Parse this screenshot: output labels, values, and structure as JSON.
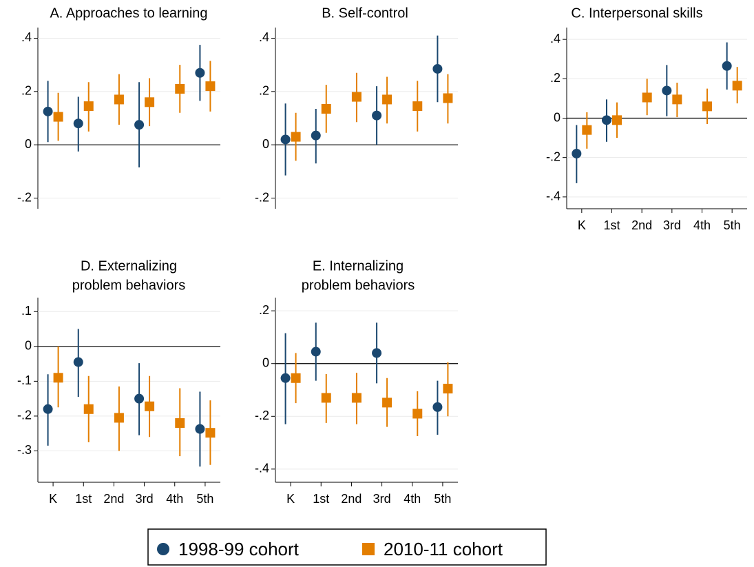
{
  "chart_data": [
    {
      "type": "errorbar",
      "title": [
        "A. Approaches to learning"
      ],
      "categories": [
        null,
        null,
        null,
        null,
        null,
        null
      ],
      "series": [
        {
          "name": "1998-99 cohort",
          "color": "#1a476f",
          "marker": "circle",
          "values": [
            0.125,
            0.08,
            null,
            0.075,
            null,
            0.27
          ],
          "lower": [
            0.01,
            -0.025,
            null,
            -0.085,
            null,
            0.165
          ],
          "upper": [
            0.24,
            0.18,
            null,
            0.235,
            null,
            0.375
          ]
        },
        {
          "name": "2010-11 cohort",
          "color": "#e37e00",
          "marker": "square",
          "values": [
            0.105,
            0.145,
            0.17,
            0.16,
            0.21,
            0.22
          ],
          "lower": [
            0.015,
            0.05,
            0.075,
            0.07,
            0.12,
            0.125
          ],
          "upper": [
            0.195,
            0.235,
            0.265,
            0.25,
            0.3,
            0.315
          ]
        }
      ],
      "ylim": [
        -0.24,
        0.44
      ],
      "yticks": [
        {
          "value": -0.2,
          "label": "-.2"
        },
        0,
        {
          "value": 0.2,
          "label": ".2"
        },
        {
          "value": 0.4,
          "label": ".4"
        }
      ],
      "grid": true,
      "x_axis": false
    },
    {
      "type": "errorbar",
      "title": [
        "B. Self-control"
      ],
      "categories": [
        null,
        null,
        null,
        null,
        null,
        null
      ],
      "series": [
        {
          "name": "1998-99 cohort",
          "color": "#1a476f",
          "marker": "circle",
          "values": [
            0.02,
            0.035,
            null,
            0.11,
            null,
            0.285
          ],
          "lower": [
            -0.115,
            -0.07,
            null,
            0.0,
            null,
            0.16
          ],
          "upper": [
            0.155,
            0.135,
            null,
            0.22,
            null,
            0.41
          ]
        },
        {
          "name": "2010-11 cohort",
          "color": "#e37e00",
          "marker": "square",
          "values": [
            0.03,
            0.135,
            0.18,
            0.17,
            0.145,
            0.175
          ],
          "lower": [
            -0.06,
            0.045,
            0.085,
            0.08,
            0.05,
            0.08
          ],
          "upper": [
            0.12,
            0.225,
            0.27,
            0.255,
            0.24,
            0.265
          ]
        }
      ],
      "ylim": [
        -0.24,
        0.44
      ],
      "yticks": [
        {
          "value": -0.2,
          "label": "-.2"
        },
        0,
        {
          "value": 0.2,
          "label": ".2"
        },
        {
          "value": 0.4,
          "label": ".4"
        }
      ],
      "grid": true,
      "x_axis": false
    },
    {
      "type": "errorbar",
      "title": [
        "C. Interpersonal skills"
      ],
      "categories": [
        "K",
        "1st",
        "2nd",
        "3rd",
        "4th",
        "5th"
      ],
      "series": [
        {
          "name": "1998-99 cohort",
          "color": "#1a476f",
          "marker": "circle",
          "values": [
            -0.18,
            -0.01,
            null,
            0.14,
            null,
            0.265
          ],
          "lower": [
            -0.33,
            -0.12,
            null,
            0.01,
            null,
            0.145
          ],
          "upper": [
            -0.035,
            0.095,
            null,
            0.27,
            null,
            0.385
          ]
        },
        {
          "name": "2010-11 cohort",
          "color": "#e37e00",
          "marker": "square",
          "values": [
            -0.06,
            -0.01,
            0.105,
            0.095,
            0.06,
            0.165
          ],
          "lower": [
            -0.155,
            -0.1,
            0.015,
            0.005,
            -0.03,
            0.075
          ],
          "upper": [
            0.03,
            0.08,
            0.2,
            0.18,
            0.15,
            0.26
          ]
        }
      ],
      "ylim": [
        -0.46,
        0.46
      ],
      "yticks": [
        {
          "value": -0.4,
          "label": "-.4"
        },
        {
          "value": -0.2,
          "label": "-.2"
        },
        0,
        {
          "value": 0.2,
          "label": ".2"
        },
        {
          "value": 0.4,
          "label": ".4"
        }
      ],
      "grid": true,
      "x_axis": true
    },
    {
      "type": "errorbar",
      "title": [
        "D. Externalizing",
        "problem behaviors"
      ],
      "categories": [
        "K",
        "1st",
        "2nd",
        "3rd",
        "4th",
        "5th"
      ],
      "series": [
        {
          "name": "1998-99 cohort",
          "color": "#1a476f",
          "marker": "circle",
          "values": [
            -0.18,
            -0.045,
            null,
            -0.15,
            null,
            -0.237
          ],
          "lower": [
            -0.285,
            -0.145,
            null,
            -0.255,
            null,
            -0.345
          ],
          "upper": [
            -0.08,
            0.05,
            null,
            -0.048,
            null,
            -0.13
          ]
        },
        {
          "name": "2010-11 cohort",
          "color": "#e37e00",
          "marker": "square",
          "values": [
            -0.09,
            -0.18,
            -0.205,
            -0.172,
            -0.22,
            -0.248
          ],
          "lower": [
            -0.175,
            -0.275,
            -0.3,
            -0.26,
            -0.315,
            -0.34
          ],
          "upper": [
            0.0,
            -0.085,
            -0.115,
            -0.085,
            -0.12,
            -0.155
          ]
        }
      ],
      "ylim": [
        -0.39,
        0.14
      ],
      "yticks": [
        {
          "value": -0.3,
          "label": "-.3"
        },
        {
          "value": -0.2,
          "label": "-.2"
        },
        {
          "value": -0.1,
          "label": "-.1"
        },
        0,
        {
          "value": 0.1,
          "label": ".1"
        }
      ],
      "grid": true,
      "x_axis": true
    },
    {
      "type": "errorbar",
      "title": [
        "E. Internalizing",
        "problem behaviors"
      ],
      "categories": [
        "K",
        "1st",
        "2nd",
        "3rd",
        "4th",
        "5th"
      ],
      "series": [
        {
          "name": "1998-99 cohort",
          "color": "#1a476f",
          "marker": "circle",
          "values": [
            -0.055,
            0.045,
            null,
            0.04,
            null,
            -0.165
          ],
          "lower": [
            -0.23,
            -0.065,
            null,
            -0.075,
            null,
            -0.27
          ],
          "upper": [
            0.115,
            0.155,
            null,
            0.155,
            null,
            -0.065
          ]
        },
        {
          "name": "2010-11 cohort",
          "color": "#e37e00",
          "marker": "square",
          "values": [
            -0.055,
            -0.13,
            -0.13,
            -0.148,
            -0.19,
            -0.095
          ],
          "lower": [
            -0.15,
            -0.225,
            -0.23,
            -0.24,
            -0.275,
            -0.2
          ],
          "upper": [
            0.04,
            -0.04,
            -0.035,
            -0.055,
            -0.105,
            0.005
          ]
        }
      ],
      "ylim": [
        -0.45,
        0.25
      ],
      "yticks": [
        {
          "value": -0.4,
          "label": "-.4"
        },
        {
          "value": -0.2,
          "label": "-.2"
        },
        0,
        {
          "value": 0.2,
          "label": ".2"
        }
      ],
      "grid": true,
      "x_axis": true
    }
  ]
}
